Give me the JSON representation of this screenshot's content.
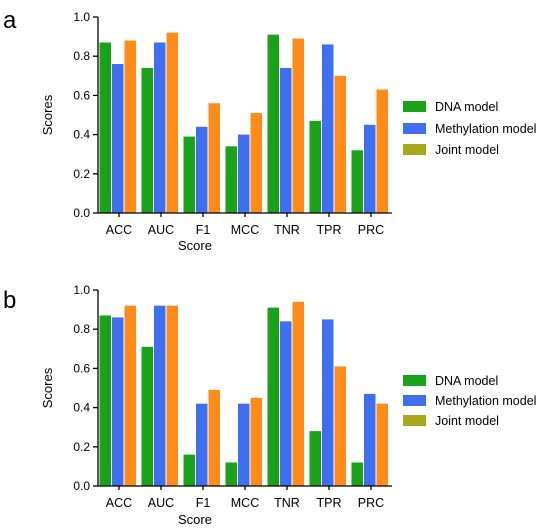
{
  "colors": {
    "dna": "#1aa31a",
    "methylation": "#3f6fee",
    "joint": "#ff8c1a",
    "legend_joint_swatch": "#a8a81f",
    "axis": "#000000"
  },
  "chart_data": [
    {
      "type": "bar",
      "panel_label": "a",
      "categories": [
        "ACC",
        "AUC",
        "F1",
        "MCC",
        "TNR",
        "TPR",
        "PRC"
      ],
      "series": [
        {
          "name": "DNA model",
          "values": [
            0.87,
            0.74,
            0.39,
            0.34,
            0.91,
            0.47,
            0.32
          ]
        },
        {
          "name": "Methylation model",
          "values": [
            0.76,
            0.87,
            0.44,
            0.4,
            0.74,
            0.86,
            0.45
          ]
        },
        {
          "name": "Joint model",
          "values": [
            0.88,
            0.92,
            0.56,
            0.51,
            0.89,
            0.7,
            0.63
          ]
        }
      ],
      "xlabel": "Score",
      "ylabel": "Scores",
      "ylim": [
        0,
        1.0
      ],
      "yticks": [
        "0.0",
        "0.2",
        "0.4",
        "0.6",
        "0.8",
        "1.0"
      ],
      "legend_position": "right",
      "grid": false
    },
    {
      "type": "bar",
      "panel_label": "b",
      "categories": [
        "ACC",
        "AUC",
        "F1",
        "MCC",
        "TNR",
        "TPR",
        "PRC"
      ],
      "series": [
        {
          "name": "DNA model",
          "values": [
            0.87,
            0.71,
            0.16,
            0.12,
            0.91,
            0.28,
            0.12
          ]
        },
        {
          "name": "Methylation model",
          "values": [
            0.86,
            0.92,
            0.42,
            0.42,
            0.84,
            0.85,
            0.47
          ]
        },
        {
          "name": "Joint model",
          "values": [
            0.92,
            0.92,
            0.49,
            0.45,
            0.94,
            0.61,
            0.42
          ]
        }
      ],
      "xlabel": "Score",
      "ylabel": "Scores",
      "ylim": [
        0,
        1.0
      ],
      "yticks": [
        "0.0",
        "0.2",
        "0.4",
        "0.6",
        "0.8",
        "1.0"
      ],
      "legend_position": "right",
      "grid": false
    }
  ]
}
